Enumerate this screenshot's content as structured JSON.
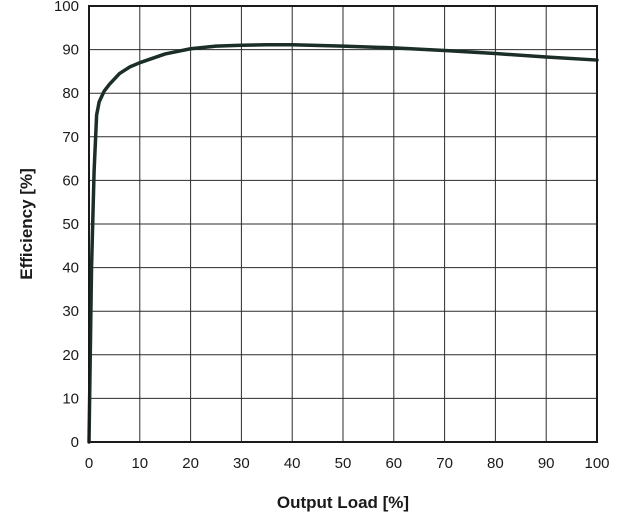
{
  "chart_data": {
    "type": "line",
    "title": "",
    "xlabel": "Output Load [%]",
    "ylabel": "Efficiency [%]",
    "xlim": [
      0,
      100
    ],
    "ylim": [
      0,
      100
    ],
    "x_ticks": [
      0,
      10,
      20,
      30,
      40,
      50,
      60,
      70,
      80,
      90,
      100
    ],
    "y_ticks": [
      0,
      10,
      20,
      30,
      40,
      50,
      60,
      70,
      80,
      90,
      100
    ],
    "grid": true,
    "legend": "none",
    "series": [
      {
        "color": "#1c2e2a",
        "x": [
          0,
          0.5,
          1,
          1.5,
          2,
          3,
          4,
          6,
          8,
          10,
          15,
          20,
          25,
          30,
          35,
          40,
          50,
          60,
          70,
          80,
          90,
          100
        ],
        "y": [
          0,
          40,
          62,
          75,
          78,
          80.5,
          82,
          84.5,
          86,
          87,
          89,
          90.2,
          90.8,
          91,
          91.1,
          91.1,
          90.8,
          90.4,
          89.8,
          89.1,
          88.3,
          87.6
        ]
      }
    ]
  }
}
